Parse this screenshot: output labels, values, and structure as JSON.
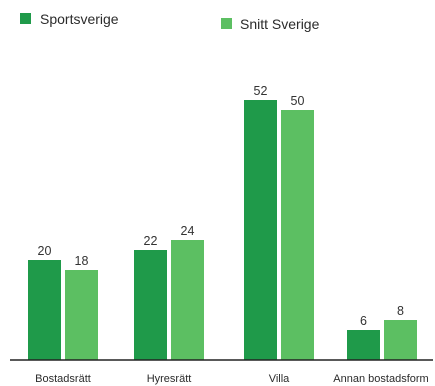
{
  "chart_data": {
    "type": "bar",
    "categories": [
      "Bostadsrätt",
      "Hyresrätt",
      "Villa",
      "Annan bostadsform"
    ],
    "series": [
      {
        "name": "Sportsverige",
        "values": [
          20,
          22,
          52,
          6
        ],
        "color": "#1f9a4a"
      },
      {
        "name": "Snitt Sverige",
        "values": [
          18,
          24,
          50,
          8
        ],
        "color": "#5cbf62"
      }
    ],
    "ylim": [
      0,
      52
    ],
    "grid": false,
    "legend_position": "top",
    "data_labels": true,
    "axis_line_color": "#222222"
  }
}
